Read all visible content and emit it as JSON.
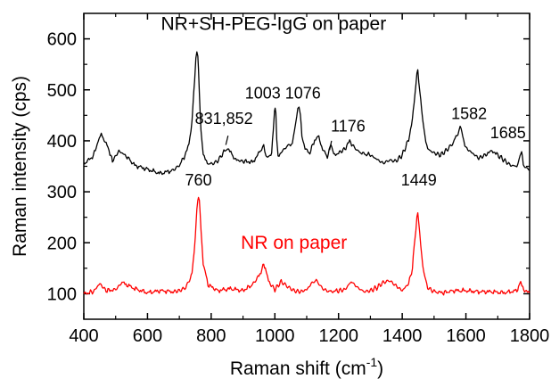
{
  "chart_data": {
    "type": "line",
    "title": "",
    "xlabel": "Raman shift (cm",
    "xlabel_superscript": "-1",
    "xlabel_suffix": ")",
    "ylabel": "Raman intensity (cps)",
    "xlim": [
      400,
      1800
    ],
    "ylim": [
      50,
      650
    ],
    "x_ticks": [
      400,
      600,
      800,
      1000,
      1200,
      1400,
      1600,
      1800
    ],
    "y_ticks": [
      100,
      200,
      300,
      400,
      500,
      600
    ],
    "grid": false,
    "legend": "none",
    "series": [
      {
        "name": "NR+SH-PEG-IgG on paper",
        "color": "#000000",
        "x": [
          400,
          430,
          445,
          455,
          470,
          485,
          490,
          510,
          530,
          560,
          600,
          640,
          680,
          700,
          715,
          730,
          740,
          748,
          752,
          755,
          758,
          760,
          763,
          768,
          775,
          785,
          800,
          820,
          840,
          852,
          865,
          880,
          900,
          930,
          955,
          965,
          972,
          978,
          985,
          990,
          995,
          999,
          1001,
          1003,
          1006,
          1010,
          1020,
          1040,
          1055,
          1065,
          1072,
          1076,
          1080,
          1085,
          1095,
          1110,
          1125,
          1135,
          1150,
          1165,
          1176,
          1185,
          1200,
          1220,
          1235,
          1250,
          1270,
          1300,
          1320,
          1340,
          1360,
          1380,
          1400,
          1420,
          1432,
          1440,
          1446,
          1449,
          1452,
          1458,
          1468,
          1480,
          1500,
          1520,
          1540,
          1560,
          1575,
          1582,
          1590,
          1600,
          1620,
          1640,
          1660,
          1675,
          1685,
          1700,
          1720,
          1740,
          1760,
          1770,
          1775,
          1780,
          1800
        ],
        "y": [
          355,
          370,
          400,
          412,
          395,
          372,
          360,
          380,
          372,
          352,
          344,
          336,
          342,
          352,
          368,
          392,
          440,
          520,
          562,
          576,
          568,
          540,
          490,
          420,
          372,
          358,
          354,
          360,
          378,
          386,
          372,
          362,
          360,
          358,
          380,
          394,
          372,
          365,
          370,
          380,
          420,
          460,
          465,
          455,
          400,
          368,
          378,
          390,
          395,
          430,
          462,
          466,
          450,
          412,
          384,
          376,
          402,
          410,
          384,
          368,
          396,
          372,
          376,
          384,
          400,
          386,
          376,
          372,
          364,
          356,
          362,
          360,
          372,
          402,
          442,
          490,
          530,
          538,
          520,
          478,
          420,
          384,
          376,
          372,
          382,
          396,
          416,
          428,
          410,
          386,
          376,
          366,
          372,
          378,
          380,
          372,
          362,
          352,
          350,
          368,
          380,
          352,
          342
        ]
      },
      {
        "name": "NR on paper",
        "color": "#ff0000",
        "x": [
          400,
          430,
          450,
          470,
          500,
          520,
          560,
          600,
          640,
          680,
          700,
          720,
          740,
          750,
          755,
          758,
          760,
          763,
          768,
          775,
          790,
          820,
          860,
          900,
          930,
          950,
          960,
          965,
          970,
          980,
          1000,
          1020,
          1040,
          1060,
          1080,
          1100,
          1120,
          1130,
          1150,
          1170,
          1200,
          1220,
          1240,
          1260,
          1280,
          1300,
          1320,
          1340,
          1360,
          1380,
          1400,
          1420,
          1432,
          1440,
          1446,
          1449,
          1452,
          1458,
          1468,
          1480,
          1500,
          1530,
          1560,
          1600,
          1640,
          1680,
          1720,
          1760,
          1768,
          1772,
          1776,
          1790,
          1800
        ],
        "y": [
          100,
          104,
          120,
          106,
          108,
          122,
          110,
          102,
          106,
          104,
          106,
          112,
          138,
          210,
          262,
          284,
          290,
          280,
          228,
          160,
          118,
          106,
          110,
          106,
          118,
          135,
          150,
          156,
          148,
          124,
          108,
          124,
          114,
          106,
          104,
          108,
          124,
          126,
          110,
          104,
          106,
          108,
          124,
          112,
          104,
          106,
          112,
          122,
          126,
          116,
          106,
          120,
          150,
          210,
          248,
          256,
          240,
          196,
          140,
          112,
          104,
          102,
          106,
          106,
          104,
          104,
          102,
          106,
          118,
          124,
          112,
          104,
          102
        ]
      }
    ],
    "annotations": [
      {
        "text": "NR+SH-PEG-IgG on paper",
        "x": 996,
        "y": 618,
        "color": "#000000",
        "kind": "series"
      },
      {
        "text": "NR on paper",
        "x": 1060,
        "y": 188,
        "color": "#ff0000",
        "kind": "series"
      },
      {
        "text": "760",
        "x": 760,
        "y": 312,
        "kind": "peak"
      },
      {
        "text": "1449",
        "x": 1452,
        "y": 312,
        "kind": "peak"
      },
      {
        "text": "1003",
        "x": 962,
        "y": 483,
        "kind": "peak"
      },
      {
        "text": "1076",
        "x": 1088,
        "y": 483,
        "kind": "peak"
      },
      {
        "text": "831,852",
        "x": 840,
        "y": 433,
        "kind": "peak"
      },
      {
        "text": "1176",
        "x": 1230,
        "y": 418,
        "kind": "peak"
      },
      {
        "text": "1582",
        "x": 1610,
        "y": 443,
        "kind": "peak"
      },
      {
        "text": "1685",
        "x": 1732,
        "y": 405,
        "kind": "peak"
      }
    ],
    "leader_lines": [
      {
        "from": [
          846,
          392
        ],
        "to": [
          853,
          410
        ]
      },
      {
        "from": [
          1172,
          382
        ],
        "to": [
          1178,
          400
        ]
      }
    ]
  }
}
